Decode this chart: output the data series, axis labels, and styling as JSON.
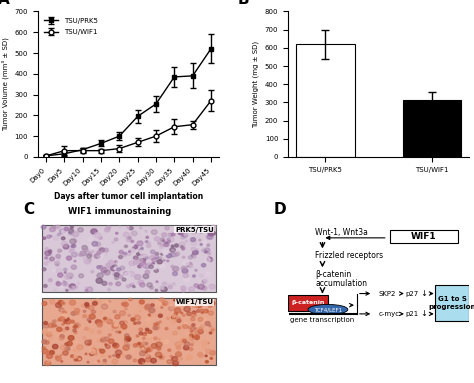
{
  "panel_A": {
    "days": [
      "Day0",
      "Day5",
      "Day10",
      "Day15",
      "Day20",
      "Day25",
      "Day30",
      "Day35",
      "Day40",
      "Day45"
    ],
    "tsu_prk5": [
      5,
      15,
      35,
      65,
      100,
      195,
      255,
      385,
      390,
      520
    ],
    "tsu_wif1": [
      5,
      30,
      30,
      30,
      40,
      70,
      100,
      145,
      155,
      270
    ],
    "prk5_err": [
      2,
      10,
      10,
      15,
      20,
      30,
      40,
      50,
      60,
      70
    ],
    "wif1_err": [
      2,
      20,
      12,
      10,
      15,
      20,
      30,
      35,
      20,
      50
    ],
    "ylabel": "Tumor Volume (mm³ ± SD)",
    "xlabel": "Days after tumor cell implantation",
    "ylim": [
      0,
      700
    ],
    "yticks": [
      0,
      100,
      200,
      300,
      400,
      500,
      600,
      700
    ],
    "label_prk5": "TSU/PRK5",
    "label_wif1": "TSU/WIF1"
  },
  "panel_B": {
    "categories": [
      "TSU/PRK5",
      "TSU/WIF1"
    ],
    "values": [
      620,
      315
    ],
    "errors": [
      80,
      40
    ],
    "colors": [
      "white",
      "black"
    ],
    "ylabel": "Tumor Weight (mg ± SD)",
    "ylim": [
      0,
      800
    ],
    "yticks": [
      0,
      100,
      200,
      300,
      400,
      500,
      600,
      700,
      800
    ]
  },
  "panel_C": {
    "title": "WIF1 immunostaining",
    "label1": "PRK5/TSU",
    "label2": "WIF1/TSU",
    "color_prk5_bg": "#d8c8d8",
    "color_wif1_bg": "#e8a890"
  },
  "panel_D": {
    "wnt_text": "Wnt-1, Wnt3a",
    "wif1_text": "WIF1",
    "frizzled_text": "Frizzled receptors",
    "bcatenin_text": "β-catenin",
    "accum_text": "accumulation",
    "gene_text": "gene transcription",
    "skp2_text": "SKP2",
    "p27_text": "p27",
    "cmyc_text": "c-myc",
    "p21_text": "p21",
    "g1s_text": "G1 to S\nprogression",
    "red_box_color": "#cc2222",
    "blue_box_color": "#aaddee",
    "tcf_color": "#3366aa"
  }
}
